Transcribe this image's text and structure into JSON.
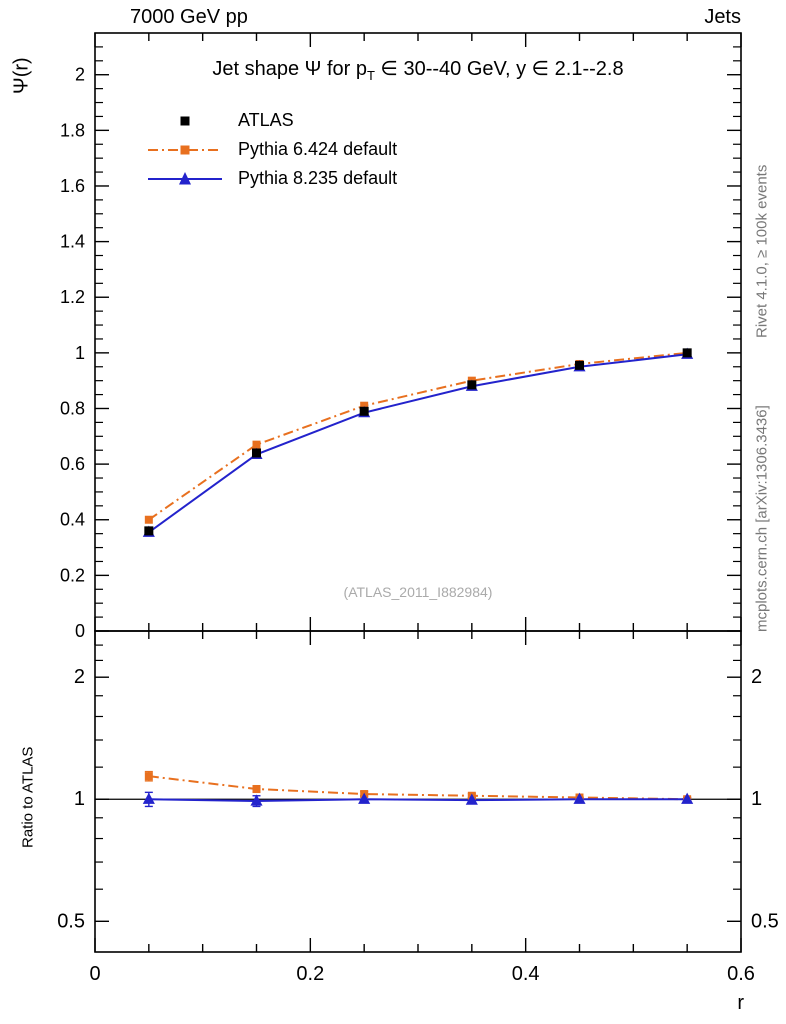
{
  "header": {
    "left": "7000 GeV pp",
    "right": "Jets"
  },
  "title": {
    "pre": "Jet shape Ψ for p",
    "sub": "T",
    "post": " ∈ 30--40 GeV, y ∈ 2.1--2.8"
  },
  "watermark": "(ATLAS_2011_I882984)",
  "side_texts": {
    "rivet": "Rivet 4.1.0, ≥ 100k events",
    "mcplots": "mcplots.cern.ch [arXiv:1306.3436]"
  },
  "axis_labels": {
    "y_main": "Ψ(r)",
    "y_ratio": "Ratio to ATLAS",
    "x": "r"
  },
  "colors": {
    "frame": "#000000",
    "atlas": "#000000",
    "pythia6": "#e8701f",
    "pythia8": "#2323cc",
    "watermark": "#aaaaaa",
    "side_text": "#787878"
  },
  "legend": [
    {
      "label": "ATLAS",
      "marker": "square",
      "line": "none",
      "color": "#000000"
    },
    {
      "label": "Pythia 6.424 default",
      "marker": "square",
      "line": "dashdot",
      "color": "#e8701f"
    },
    {
      "label": "Pythia 8.235 default",
      "marker": "triangle",
      "line": "solid",
      "color": "#2323cc"
    }
  ],
  "chart_data": [
    {
      "type": "line",
      "panel": "main",
      "title": "Jet shape Ψ for p_T ∈ 30--40 GeV, y ∈ 2.1--2.8",
      "xlabel": "r",
      "ylabel": "Ψ(r)",
      "xlim": [
        0,
        0.6
      ],
      "ylim": [
        0,
        2.15
      ],
      "grid": false,
      "legend_position": "top-left",
      "x": [
        0.05,
        0.15,
        0.25,
        0.35,
        0.45,
        0.55
      ],
      "series": [
        {
          "name": "ATLAS",
          "values": [
            0.36,
            0.64,
            0.79,
            0.885,
            0.955,
            1.0
          ]
        },
        {
          "name": "Pythia 6.424 default",
          "values": [
            0.4,
            0.67,
            0.81,
            0.9,
            0.96,
            1.0
          ]
        },
        {
          "name": "Pythia 8.235 default",
          "values": [
            0.355,
            0.635,
            0.785,
            0.88,
            0.95,
            0.995
          ]
        }
      ],
      "xticks": [
        0,
        0.2,
        0.4,
        0.6
      ],
      "yticks": [
        0,
        0.2,
        0.4,
        0.6,
        0.8,
        1,
        1.2,
        1.4,
        1.6,
        1.8,
        2
      ]
    },
    {
      "type": "line",
      "panel": "ratio",
      "ylabel": "Ratio to ATLAS",
      "yscale": "log",
      "xlim": [
        0,
        0.6
      ],
      "ylim": [
        0.42,
        2.6
      ],
      "reference_line": 1,
      "x": [
        0.05,
        0.15,
        0.25,
        0.35,
        0.45,
        0.55
      ],
      "series": [
        {
          "name": "Pythia 6.424 default",
          "values": [
            1.14,
            1.06,
            1.03,
            1.02,
            1.01,
            1.0
          ],
          "yerr": [
            0.03,
            0.02,
            0.015,
            0.012,
            0.01,
            0.008
          ]
        },
        {
          "name": "Pythia 8.235 default",
          "values": [
            1.0,
            0.99,
            1.0,
            0.995,
            1.0,
            1.0
          ],
          "yerr": [
            0.04,
            0.03,
            0.02,
            0.015,
            0.012,
            0.01
          ]
        }
      ],
      "xticks": [
        0,
        0.2,
        0.4,
        0.6
      ],
      "yticks": [
        0.5,
        1,
        2
      ],
      "yminors": [
        0.6,
        0.7,
        0.8,
        0.9,
        1.2,
        1.4,
        1.6,
        1.8,
        2.2,
        2.4
      ]
    }
  ]
}
